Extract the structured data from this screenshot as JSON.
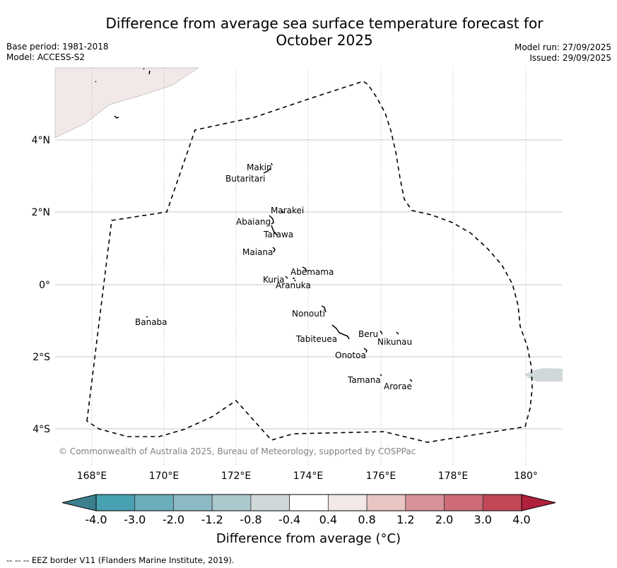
{
  "title_line1": "Difference from average sea surface temperature forecast for",
  "title_line2": "October 2025",
  "meta_left": {
    "base_period": "Base period: 1981-2018",
    "model": "Model: ACCESS-S2"
  },
  "meta_right": {
    "model_run": "Model run: 27/09/2025",
    "issued": "Issued: 29/09/2025"
  },
  "map": {
    "lon_ticks": [
      "168°E",
      "170°E",
      "172°E",
      "174°E",
      "176°E",
      "180°"
    ],
    "lon_tick_178": "178°E",
    "lat_ticks": [
      "4°N",
      "2°N",
      "0°",
      "2°S",
      "4°S"
    ],
    "islands": [
      {
        "name": "Makin"
      },
      {
        "name": "Butaritari"
      },
      {
        "name": "Marakei"
      },
      {
        "name": "Abaiang"
      },
      {
        "name": "Tarawa"
      },
      {
        "name": "Maiana"
      },
      {
        "name": "Abemama"
      },
      {
        "name": "Kuria"
      },
      {
        "name": "Aranuka"
      },
      {
        "name": "Nonouti"
      },
      {
        "name": "Banaba"
      },
      {
        "name": "Tabiteuea"
      },
      {
        "name": "Beru"
      },
      {
        "name": "Nikunau"
      },
      {
        "name": "Onotoa"
      },
      {
        "name": "Tamana"
      },
      {
        "name": "Arorae"
      }
    ],
    "credit": "© Commonwealth of Australia 2025, Bureau of Meteorology, supported by COSPPac"
  },
  "colorbar": {
    "ticks": [
      "-4.0",
      "-3.0",
      "-2.0",
      "-1.2",
      "-0.8",
      "-0.4",
      "0.4",
      "0.8",
      "1.2",
      "2.0",
      "3.0",
      "4.0"
    ],
    "colors": [
      "#3b808e",
      "#48a1b0",
      "#6aaeba",
      "#8cbac4",
      "#abc8cd",
      "#d1d8da",
      "#ffffff",
      "#f2e8e8",
      "#e9c6c3",
      "#d9929a",
      "#cd6c77",
      "#c24858",
      "#b01f3b"
    ],
    "label": "Difference from average (°C)"
  },
  "footer": {
    "eez_note": "--  --  -- EEZ border V11 (Flanders Marine Institute, 2019)."
  }
}
